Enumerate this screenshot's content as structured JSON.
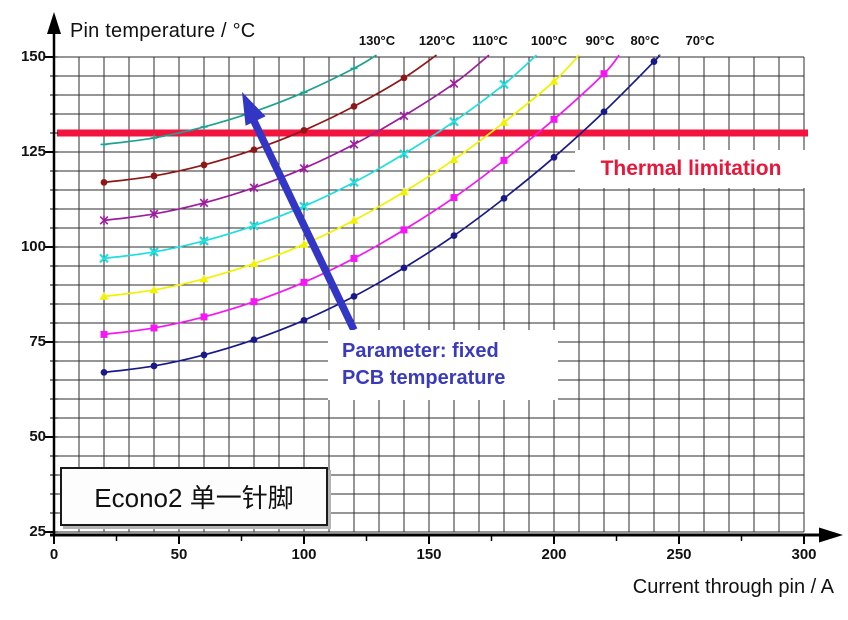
{
  "page": {
    "background": "#ffffff"
  },
  "colors": {
    "grid": "#2e2e2e",
    "axis": "#000000",
    "thermal_line": "#f2143f",
    "thermal_text": "#e8173a",
    "arrow": "#3336c4",
    "parameter_text": "#3a3abc",
    "module_text": "#111111"
  },
  "annotations": {
    "thermal_limitation": "Thermal limitation",
    "parameter_line1": "Parameter: fixed",
    "parameter_line2": "PCB temperature",
    "module_label": "Econo2 单一针脚"
  },
  "chart_data": {
    "type": "line",
    "xlabel": "Current through pin / A",
    "ylabel": "Pin temperature / °C",
    "xlim": [
      0,
      300
    ],
    "ylim": [
      25,
      150
    ],
    "x_ticks": [
      0,
      50,
      100,
      150,
      200,
      250,
      300
    ],
    "y_ticks": [
      25,
      50,
      75,
      100,
      125,
      150
    ],
    "grid": {
      "visible": true,
      "x_step": 10,
      "y_step": 5
    },
    "thermal_limit_value": 130,
    "legend_note": "Parameter: fixed PCB temperature",
    "series": [
      {
        "label": "130°C",
        "pcb_temperature": 130,
        "color": "#1fa290",
        "marker": "plus",
        "points": [
          [
            20,
            127
          ],
          [
            40,
            128.7
          ],
          [
            60,
            131.6
          ],
          [
            80,
            135.6
          ],
          [
            100,
            140.7
          ],
          [
            120,
            147.0
          ],
          [
            129,
            150.5
          ]
        ]
      },
      {
        "label": "120°C",
        "pcb_temperature": 120,
        "color": "#8e1717",
        "marker": "dot",
        "points": [
          [
            20,
            117
          ],
          [
            40,
            118.7
          ],
          [
            60,
            121.6
          ],
          [
            80,
            125.6
          ],
          [
            100,
            130.7
          ],
          [
            120,
            137.0
          ],
          [
            140,
            144.5
          ],
          [
            153,
            150.5
          ]
        ]
      },
      {
        "label": "110°C",
        "pcb_temperature": 110,
        "color": "#9c1d9c",
        "marker": "asterisk",
        "points": [
          [
            20,
            107
          ],
          [
            40,
            108.7
          ],
          [
            60,
            111.6
          ],
          [
            80,
            115.6
          ],
          [
            100,
            120.7
          ],
          [
            120,
            127.0
          ],
          [
            140,
            134.5
          ],
          [
            160,
            143.0
          ],
          [
            174,
            150.5
          ]
        ]
      },
      {
        "label": "100°C",
        "pcb_temperature": 100,
        "color": "#1fdede",
        "marker": "x",
        "points": [
          [
            20,
            97
          ],
          [
            40,
            98.7
          ],
          [
            60,
            101.6
          ],
          [
            80,
            105.6
          ],
          [
            100,
            110.7
          ],
          [
            120,
            117.0
          ],
          [
            140,
            124.5
          ],
          [
            160,
            133.0
          ],
          [
            180,
            142.8
          ],
          [
            193,
            150.5
          ]
        ]
      },
      {
        "label": "90°C",
        "pcb_temperature": 90,
        "color": "#f2f200",
        "marker": "triangle",
        "points": [
          [
            20,
            87
          ],
          [
            40,
            88.7
          ],
          [
            60,
            91.6
          ],
          [
            80,
            95.6
          ],
          [
            100,
            100.7
          ],
          [
            120,
            107.0
          ],
          [
            140,
            114.5
          ],
          [
            160,
            123.0
          ],
          [
            180,
            132.8
          ],
          [
            200,
            143.6
          ],
          [
            210,
            150.5
          ]
        ]
      },
      {
        "label": "80°C",
        "pcb_temperature": 80,
        "color": "#f516f5",
        "marker": "square",
        "points": [
          [
            20,
            77
          ],
          [
            40,
            78.7
          ],
          [
            60,
            81.6
          ],
          [
            80,
            85.6
          ],
          [
            100,
            90.7
          ],
          [
            120,
            97.0
          ],
          [
            140,
            104.5
          ],
          [
            160,
            113.0
          ],
          [
            180,
            122.8
          ],
          [
            200,
            133.6
          ],
          [
            220,
            145.6
          ],
          [
            226,
            150.5
          ]
        ]
      },
      {
        "label": "70°C",
        "pcb_temperature": 70,
        "color": "#191989",
        "marker": "dot",
        "points": [
          [
            20,
            67
          ],
          [
            40,
            68.7
          ],
          [
            60,
            71.6
          ],
          [
            80,
            75.6
          ],
          [
            100,
            80.7
          ],
          [
            120,
            87.0
          ],
          [
            140,
            94.5
          ],
          [
            160,
            103.0
          ],
          [
            180,
            112.8
          ],
          [
            200,
            123.6
          ],
          [
            220,
            135.6
          ],
          [
            240,
            148.8
          ],
          [
            242,
            150.5
          ]
        ]
      }
    ]
  }
}
